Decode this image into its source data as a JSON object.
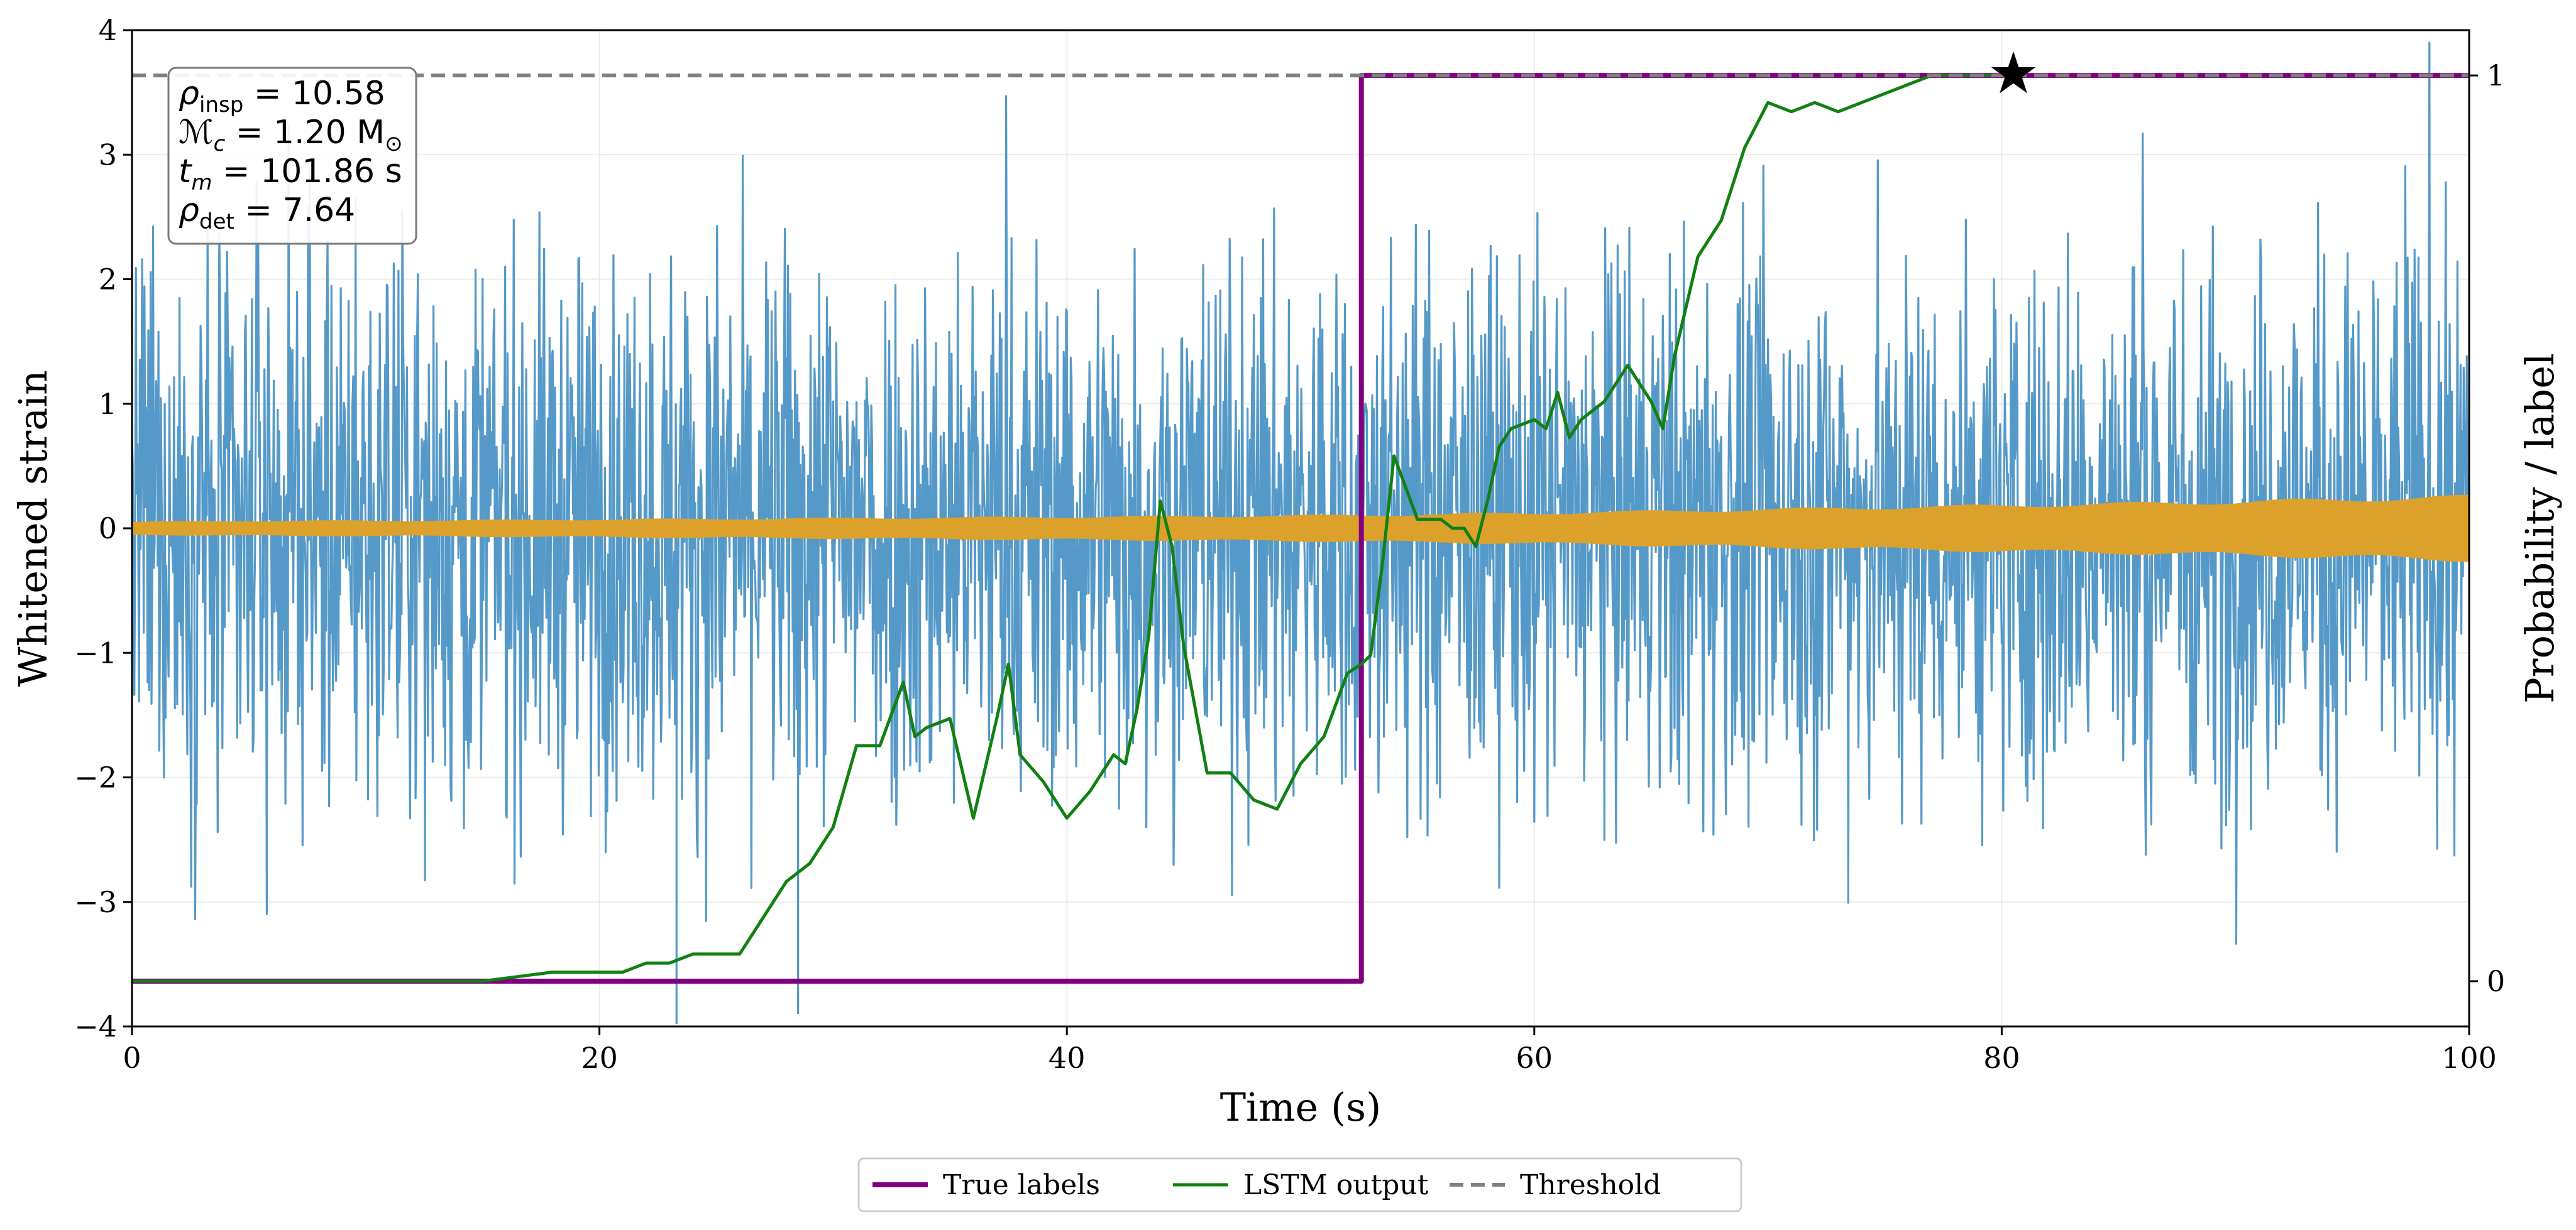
{
  "chart_data": {
    "type": "line",
    "xlabel": "Time (s)",
    "ylabel_left": "Whitened strain",
    "ylabel_right": "Probability / label",
    "xlim": [
      0,
      100
    ],
    "ylim_left": [
      -4,
      4
    ],
    "ylim_right": [
      -0.05,
      1.05
    ],
    "x_ticks": [
      "0",
      "20",
      "40",
      "60",
      "80",
      "100"
    ],
    "y_ticks_left": [
      "−4",
      "−3",
      "−2",
      "−1",
      "0",
      "1",
      "2",
      "3",
      "4"
    ],
    "y_ticks_right": [
      "0",
      "1"
    ],
    "grid": true,
    "legend_position": "bottom-center",
    "annotation_lines": [
      {
        "sym": "ρ",
        "sub": "insp",
        "text": " = 10.58"
      },
      {
        "sym": "ℳ",
        "sub": "c",
        "text": " = 1.20 M",
        "tail": "⊙"
      },
      {
        "sym": "t",
        "sub": "m",
        "text": " = 101.86 s"
      },
      {
        "sym": "ρ",
        "sub": "det",
        "text": " = 7.64"
      }
    ],
    "noise": {
      "color": "#5599c8",
      "typical_amplitude": 1.8,
      "max_amplitude": 3.9
    },
    "signal_envelope": {
      "color": "#dca12a",
      "x": [
        0,
        5,
        10,
        20,
        30,
        40,
        50,
        60,
        70,
        80,
        90,
        100
      ],
      "amplitude": [
        0.05,
        0.06,
        0.06,
        0.07,
        0.08,
        0.09,
        0.1,
        0.12,
        0.15,
        0.18,
        0.21,
        0.25
      ]
    },
    "series": [
      {
        "name": "True labels",
        "color": "#800080",
        "x": [
          0,
          52.6,
          52.6,
          100
        ],
        "y": [
          0,
          0,
          1,
          1
        ]
      },
      {
        "name": "LSTM output",
        "color": "#128012",
        "x": [
          0,
          10,
          15,
          16.5,
          18,
          19,
          20,
          21,
          22,
          23,
          24,
          25,
          26,
          27,
          28,
          29,
          30,
          31,
          32,
          33,
          33.5,
          34,
          35,
          36,
          37,
          37.5,
          38,
          39,
          40,
          41,
          42,
          42.5,
          43,
          43.5,
          44,
          44.5,
          45,
          46,
          47,
          48,
          49,
          50,
          51,
          52,
          52.6,
          53,
          53.5,
          54,
          55,
          56,
          56.5,
          57,
          57.5,
          58,
          58.5,
          59,
          60,
          60.5,
          61,
          61.5,
          62,
          63,
          64,
          65,
          65.5,
          66,
          67,
          68,
          69,
          70,
          71,
          72,
          73,
          74,
          75,
          76,
          77,
          78,
          80,
          80.5
        ],
        "y": [
          0,
          0,
          0,
          0.005,
          0.01,
          0.01,
          0.01,
          0.01,
          0.02,
          0.02,
          0.03,
          0.03,
          0.03,
          0.07,
          0.11,
          0.13,
          0.17,
          0.26,
          0.26,
          0.33,
          0.27,
          0.28,
          0.29,
          0.18,
          0.29,
          0.35,
          0.25,
          0.22,
          0.18,
          0.21,
          0.25,
          0.24,
          0.3,
          0.38,
          0.53,
          0.48,
          0.37,
          0.23,
          0.23,
          0.2,
          0.19,
          0.24,
          0.27,
          0.34,
          0.35,
          0.36,
          0.46,
          0.58,
          0.51,
          0.51,
          0.5,
          0.5,
          0.48,
          0.53,
          0.59,
          0.61,
          0.62,
          0.61,
          0.65,
          0.6,
          0.62,
          0.64,
          0.68,
          0.64,
          0.61,
          0.69,
          0.8,
          0.84,
          0.92,
          0.97,
          0.96,
          0.97,
          0.96,
          0.97,
          0.98,
          0.99,
          1.0,
          1.0,
          1.0,
          1.0
        ]
      },
      {
        "name": "Threshold",
        "color": "#808080",
        "style": "dashed",
        "y_value": 1
      }
    ],
    "detection_marker": {
      "x": 80.5,
      "y": 1,
      "symbol": "★"
    }
  }
}
